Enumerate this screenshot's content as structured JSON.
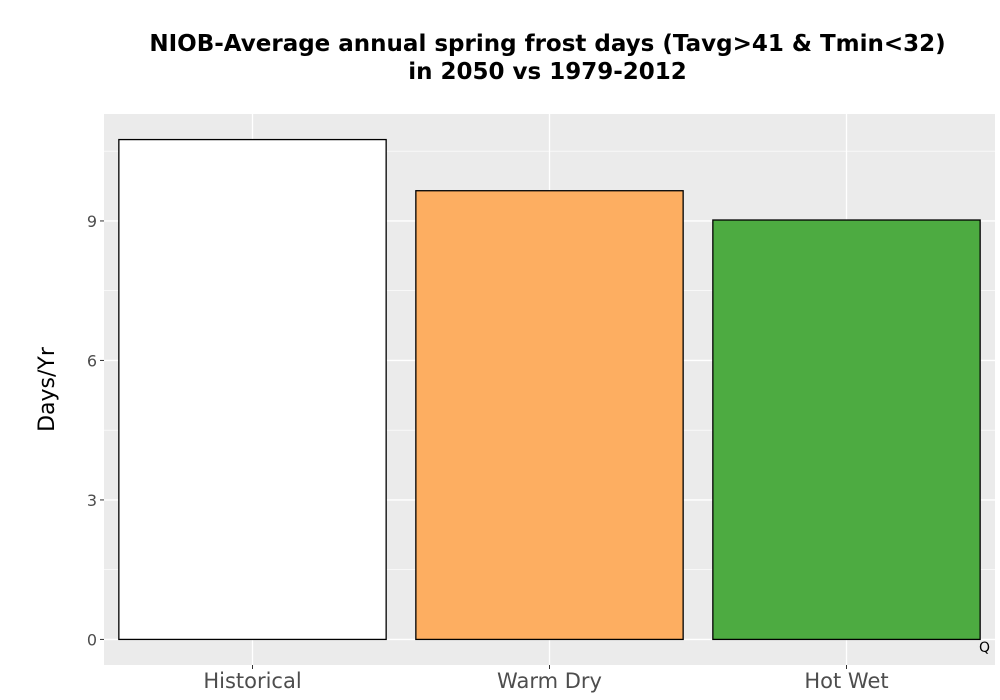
{
  "chart_data": {
    "type": "bar",
    "title_lines": [
      "NIOB-Average annual spring frost days (Tavg>41 & Tmin<32)",
      "in 2050 vs 1979-2012"
    ],
    "xlabel": "",
    "ylabel": "Days/Yr",
    "categories": [
      "Historical",
      "Warm Dry",
      "Hot Wet"
    ],
    "values": [
      10.75,
      9.65,
      9.02
    ],
    "bar_colors": [
      "#ffffff",
      "#fdae61",
      "#4dab41"
    ],
    "ylim": [
      -0.55,
      11.3
    ],
    "yticks": [
      0,
      3,
      6,
      9
    ],
    "ytick_labels": [
      "0",
      "3",
      "6",
      "9"
    ],
    "grid": true,
    "panel_background": "#ebebeb",
    "corner_mark": "Q"
  }
}
